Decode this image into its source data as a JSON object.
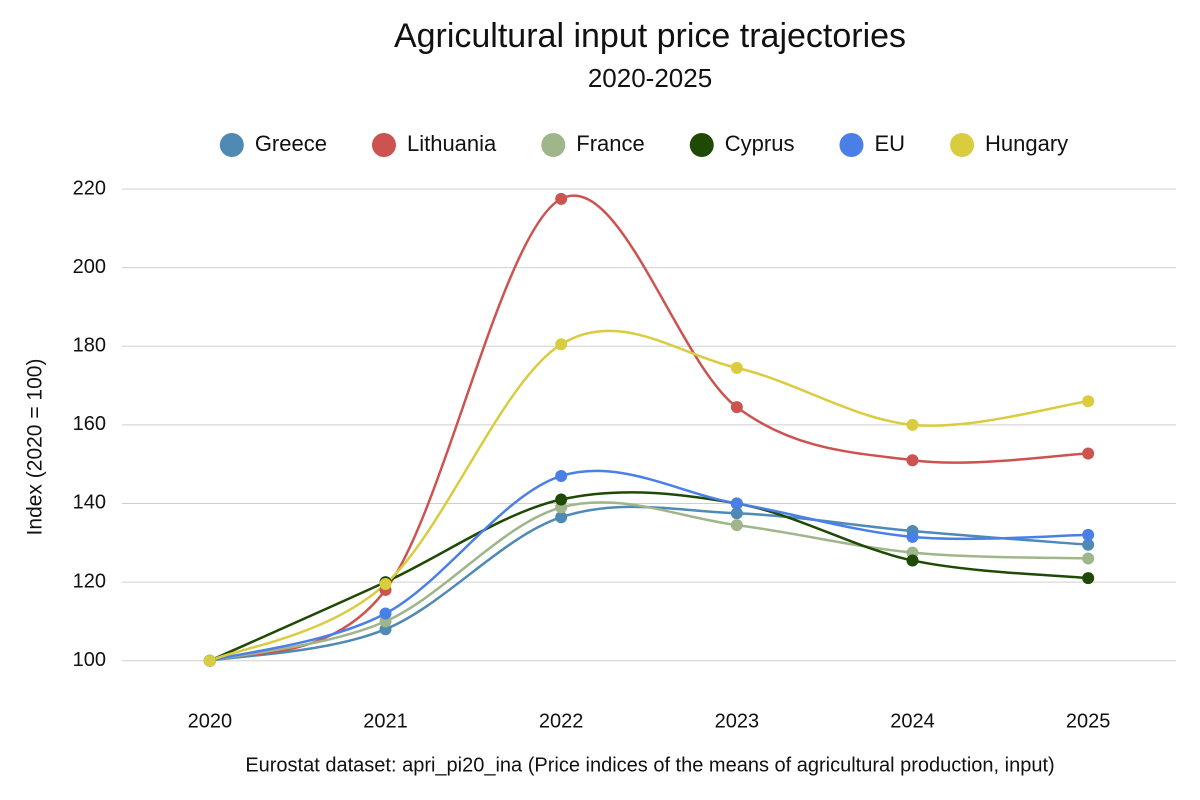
{
  "chart_data": {
    "type": "line",
    "title": "Agricultural input price trajectories",
    "subtitle": "2020-2025",
    "y_label": "Index (2020 = 100)",
    "source": "Eurostat dataset: apri_pi20_ina (Price indices of the means of agricultural production, input)",
    "categories": [
      "2020",
      "2021",
      "2022",
      "2023",
      "2024",
      "2025"
    ],
    "series": [
      {
        "name": "Greece",
        "color": "#4e8ab4",
        "values": [
          100,
          108,
          136.5,
          137.5,
          133,
          129.5
        ]
      },
      {
        "name": "Lithuania",
        "color": "#cc5350",
        "values": [
          100,
          118,
          217.5,
          164.5,
          151,
          152.7
        ]
      },
      {
        "name": "France",
        "color": "#9fb68a",
        "values": [
          100,
          110,
          139,
          134.5,
          127.5,
          126
        ]
      },
      {
        "name": "Cyprus",
        "color": "#1f4a05",
        "values": [
          100,
          120,
          141,
          140,
          125.5,
          121
        ]
      },
      {
        "name": "EU",
        "color": "#4a7fe8",
        "values": [
          100,
          112,
          147,
          140,
          131.5,
          132
        ]
      },
      {
        "name": "Hungary",
        "color": "#d9cc3f",
        "values": [
          100,
          119.5,
          180.5,
          174.5,
          160,
          166
        ]
      }
    ],
    "ylim": [
      90,
      220
    ],
    "yticks": [
      100,
      120,
      140,
      160,
      180,
      200,
      220
    ],
    "grid": true,
    "legend": "top"
  }
}
